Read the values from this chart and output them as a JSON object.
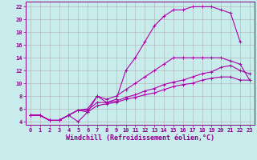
{
  "xlabel": "Windchill (Refroidissement éolien,°C)",
  "bg_color": "#c8ecec",
  "grid_color": "#b0b0b0",
  "line_color": "#aa00aa",
  "xlim": [
    -0.5,
    23.5
  ],
  "ylim": [
    3.5,
    22.8
  ],
  "xticks": [
    0,
    1,
    2,
    3,
    4,
    5,
    6,
    7,
    8,
    9,
    10,
    11,
    12,
    13,
    14,
    15,
    16,
    17,
    18,
    19,
    20,
    21,
    22,
    23
  ],
  "yticks": [
    4,
    6,
    8,
    10,
    12,
    14,
    16,
    18,
    20,
    22
  ],
  "curve1_x": [
    0,
    1,
    2,
    3,
    4,
    5,
    6,
    7,
    8,
    9,
    10,
    11,
    12,
    13,
    14,
    15,
    16,
    17,
    18,
    19,
    20,
    21,
    22
  ],
  "curve1_y": [
    5,
    5,
    4.2,
    4.2,
    5,
    4,
    5.5,
    8,
    7,
    7.5,
    12,
    14,
    16.5,
    19,
    20.5,
    21.5,
    21.5,
    22,
    22,
    22,
    21.5,
    21,
    16.5
  ],
  "curve2_x": [
    0,
    1,
    2,
    3,
    4,
    5,
    6,
    7,
    8,
    9,
    10,
    11,
    12,
    13,
    14,
    15,
    16,
    17,
    18,
    19,
    20,
    21,
    22,
    23
  ],
  "curve2_y": [
    5,
    5,
    4.2,
    4.2,
    5,
    5.8,
    6,
    8,
    7.5,
    8,
    9,
    10,
    11,
    12,
    13,
    14,
    14,
    14,
    14,
    14,
    14,
    13.5,
    13,
    10.5
  ],
  "curve3_x": [
    0,
    1,
    2,
    3,
    4,
    5,
    6,
    7,
    8,
    9,
    10,
    11,
    12,
    13,
    14,
    15,
    16,
    17,
    18,
    19,
    20,
    21,
    22,
    23
  ],
  "curve3_y": [
    5,
    5,
    4.2,
    4.2,
    5,
    5.8,
    5.8,
    7,
    7,
    7.2,
    7.8,
    8.2,
    8.8,
    9.2,
    9.8,
    10.2,
    10.5,
    11,
    11.5,
    11.8,
    12.5,
    12.8,
    12,
    11.5
  ],
  "curve4_x": [
    0,
    1,
    2,
    3,
    4,
    5,
    6,
    7,
    8,
    9,
    10,
    11,
    12,
    13,
    14,
    15,
    16,
    17,
    18,
    19,
    20,
    21,
    22,
    23
  ],
  "curve4_y": [
    5,
    5,
    4.2,
    4.2,
    5,
    5.8,
    5.5,
    6.5,
    6.8,
    7,
    7.5,
    7.8,
    8.2,
    8.5,
    9,
    9.5,
    9.8,
    10,
    10.5,
    10.8,
    11,
    11,
    10.5,
    10.5
  ],
  "marker": "+",
  "marker_size": 3,
  "line_width": 0.8,
  "tick_fontsize": 5,
  "label_fontsize": 6
}
